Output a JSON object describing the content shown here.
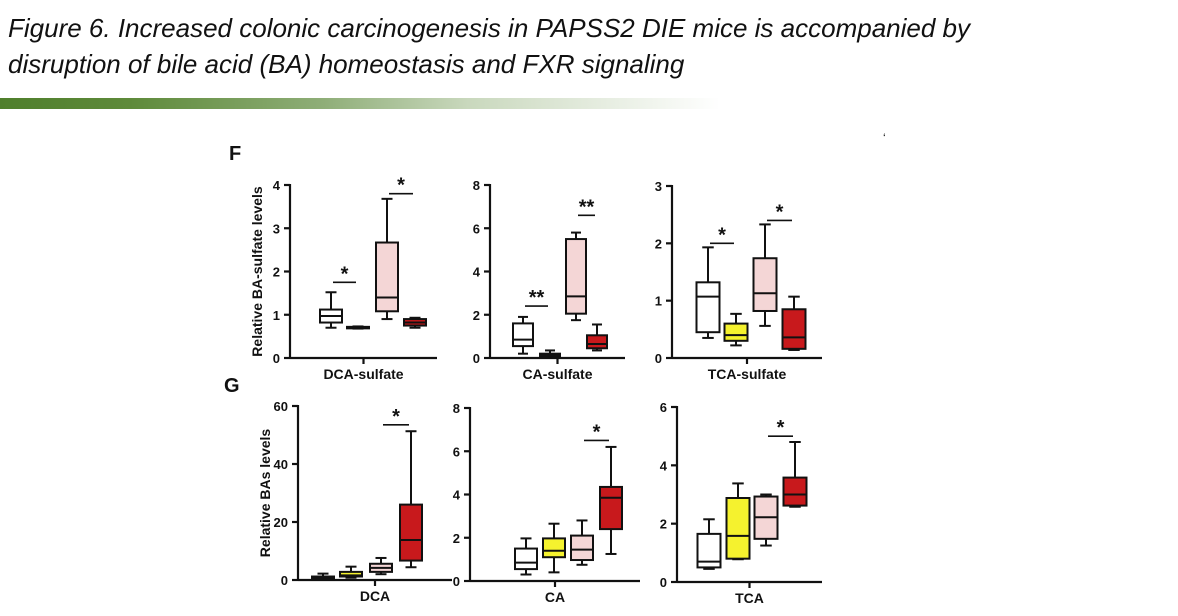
{
  "title": {
    "line1": "Figure 6. Increased colonic carcinogenesis in PAPSS2 DIE mice is accompanied by",
    "line2": "disruption of bile acid (BA) homeostasis and FXR signaling"
  },
  "stray_mark": "‘",
  "colors": {
    "group1": "#ffffff",
    "group2": "#f5f22e",
    "group3": "#f4d6d6",
    "group4": "#c8191c",
    "rule": "#4f7f2c"
  },
  "chart_data": [
    {
      "type": "box",
      "panel": "F",
      "title": "",
      "xlabel": "DCA-sulfate",
      "ylabel": "Relative BA-sulfate levels",
      "ylim": [
        0,
        4
      ],
      "yticks": [
        "0",
        "1",
        "2",
        "3",
        "4"
      ],
      "boxes": [
        [
          0.7,
          0.82,
          0.97,
          1.12,
          1.52
        ],
        [
          0.68,
          0.69,
          0.7,
          0.72,
          0.73
        ],
        [
          0.9,
          1.08,
          1.4,
          2.67,
          3.68
        ],
        [
          0.7,
          0.75,
          0.82,
          0.9,
          0.93
        ]
      ],
      "significance": [
        {
          "groups": [
            1,
            2
          ],
          "label": "*",
          "y": 1.75
        },
        {
          "groups": [
            3,
            4
          ],
          "label": "*",
          "y": 3.8
        }
      ]
    },
    {
      "type": "box",
      "panel": "",
      "xlabel": "CA-sulfate",
      "ylim": [
        0,
        8
      ],
      "yticks": [
        "0",
        "2",
        "4",
        "6",
        "8"
      ],
      "boxes": [
        [
          0.2,
          0.55,
          0.85,
          1.6,
          1.9
        ],
        [
          0.02,
          0.05,
          0.12,
          0.2,
          0.35
        ],
        [
          1.75,
          2.05,
          2.85,
          5.5,
          5.8
        ],
        [
          0.35,
          0.45,
          0.65,
          1.05,
          1.55
        ]
      ],
      "significance": [
        {
          "groups": [
            1,
            2
          ],
          "label": "**",
          "y": 2.4
        },
        {
          "groups": [
            3,
            4
          ],
          "label": "**",
          "y": 6.6
        }
      ]
    },
    {
      "type": "box",
      "panel": "",
      "xlabel": "TCA-sulfate",
      "ylim": [
        0,
        3
      ],
      "yticks": [
        "0",
        "1",
        "2",
        "3"
      ],
      "boxes": [
        [
          0.35,
          0.45,
          1.07,
          1.32,
          1.93
        ],
        [
          0.22,
          0.3,
          0.4,
          0.6,
          0.77
        ],
        [
          0.56,
          0.82,
          1.13,
          1.74,
          2.33
        ],
        [
          0.14,
          0.16,
          0.36,
          0.85,
          1.07
        ]
      ],
      "significance": [
        {
          "groups": [
            1,
            2
          ],
          "label": "*",
          "y": 2.0
        },
        {
          "groups": [
            3,
            4
          ],
          "label": "*",
          "y": 2.4
        }
      ]
    },
    {
      "type": "box",
      "panel": "G",
      "xlabel": "DCA",
      "ylabel": "Relative BAs levels",
      "ylim": [
        0,
        60
      ],
      "yticks": [
        "0",
        "20",
        "40",
        "60"
      ],
      "boxes": [
        [
          0,
          0.3,
          0.7,
          1.2,
          2.2
        ],
        [
          0.8,
          1.2,
          1.6,
          2.8,
          4.6
        ],
        [
          2,
          2.8,
          4.2,
          5.6,
          7.6
        ],
        [
          4.4,
          6.7,
          13.8,
          26,
          51.3
        ]
      ],
      "significance": [
        {
          "groups": [
            3,
            4
          ],
          "label": "*",
          "y": 53.5
        }
      ]
    },
    {
      "type": "box",
      "panel": "",
      "xlabel": "CA",
      "ylim": [
        0,
        8
      ],
      "yticks": [
        "0",
        "2",
        "4",
        "6",
        "8"
      ],
      "boxes": [
        [
          0.3,
          0.55,
          0.85,
          1.5,
          1.97
        ],
        [
          0.4,
          1.1,
          1.4,
          1.97,
          2.65
        ],
        [
          0.75,
          0.97,
          1.45,
          2.1,
          2.8
        ],
        [
          1.25,
          2.4,
          3.85,
          4.35,
          6.2
        ]
      ],
      "significance": [
        {
          "groups": [
            3,
            4
          ],
          "label": "*",
          "y": 6.5
        }
      ]
    },
    {
      "type": "box",
      "panel": "",
      "xlabel": "TCA",
      "ylim": [
        0,
        6
      ],
      "yticks": [
        "0",
        "2",
        "4",
        "6"
      ],
      "boxes": [
        [
          0.45,
          0.5,
          0.7,
          1.65,
          2.15
        ],
        [
          0.78,
          0.8,
          1.58,
          2.88,
          3.38
        ],
        [
          1.25,
          1.48,
          2.22,
          2.93,
          3.0
        ],
        [
          2.58,
          2.62,
          3.0,
          3.58,
          4.8
        ]
      ],
      "significance": [
        {
          "groups": [
            3,
            4
          ],
          "label": "*",
          "y": 5.0
        }
      ]
    }
  ]
}
